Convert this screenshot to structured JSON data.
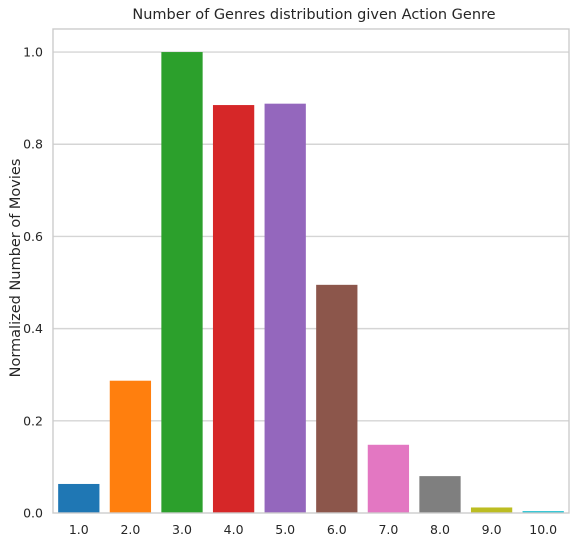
{
  "chart_data": {
    "type": "bar",
    "title": "Number of Genres distribution given Action Genre",
    "xlabel": "",
    "ylabel": "Normalized Number of Movies",
    "categories": [
      "1.0",
      "2.0",
      "3.0",
      "4.0",
      "5.0",
      "6.0",
      "7.0",
      "8.0",
      "9.0",
      "10.0"
    ],
    "values": [
      0.063,
      0.287,
      1.0,
      0.885,
      0.888,
      0.495,
      0.148,
      0.08,
      0.012,
      0.004
    ],
    "colors": [
      "#1f77b4",
      "#ff7f0e",
      "#2ca02c",
      "#d62728",
      "#9467bd",
      "#8c564b",
      "#e377c2",
      "#7f7f7f",
      "#bcbd22",
      "#17becf"
    ],
    "ylim": [
      0,
      1.05
    ],
    "yticks": [
      "0.0",
      "0.2",
      "0.4",
      "0.6",
      "0.8",
      "1.0"
    ],
    "grid": "horizontal"
  }
}
